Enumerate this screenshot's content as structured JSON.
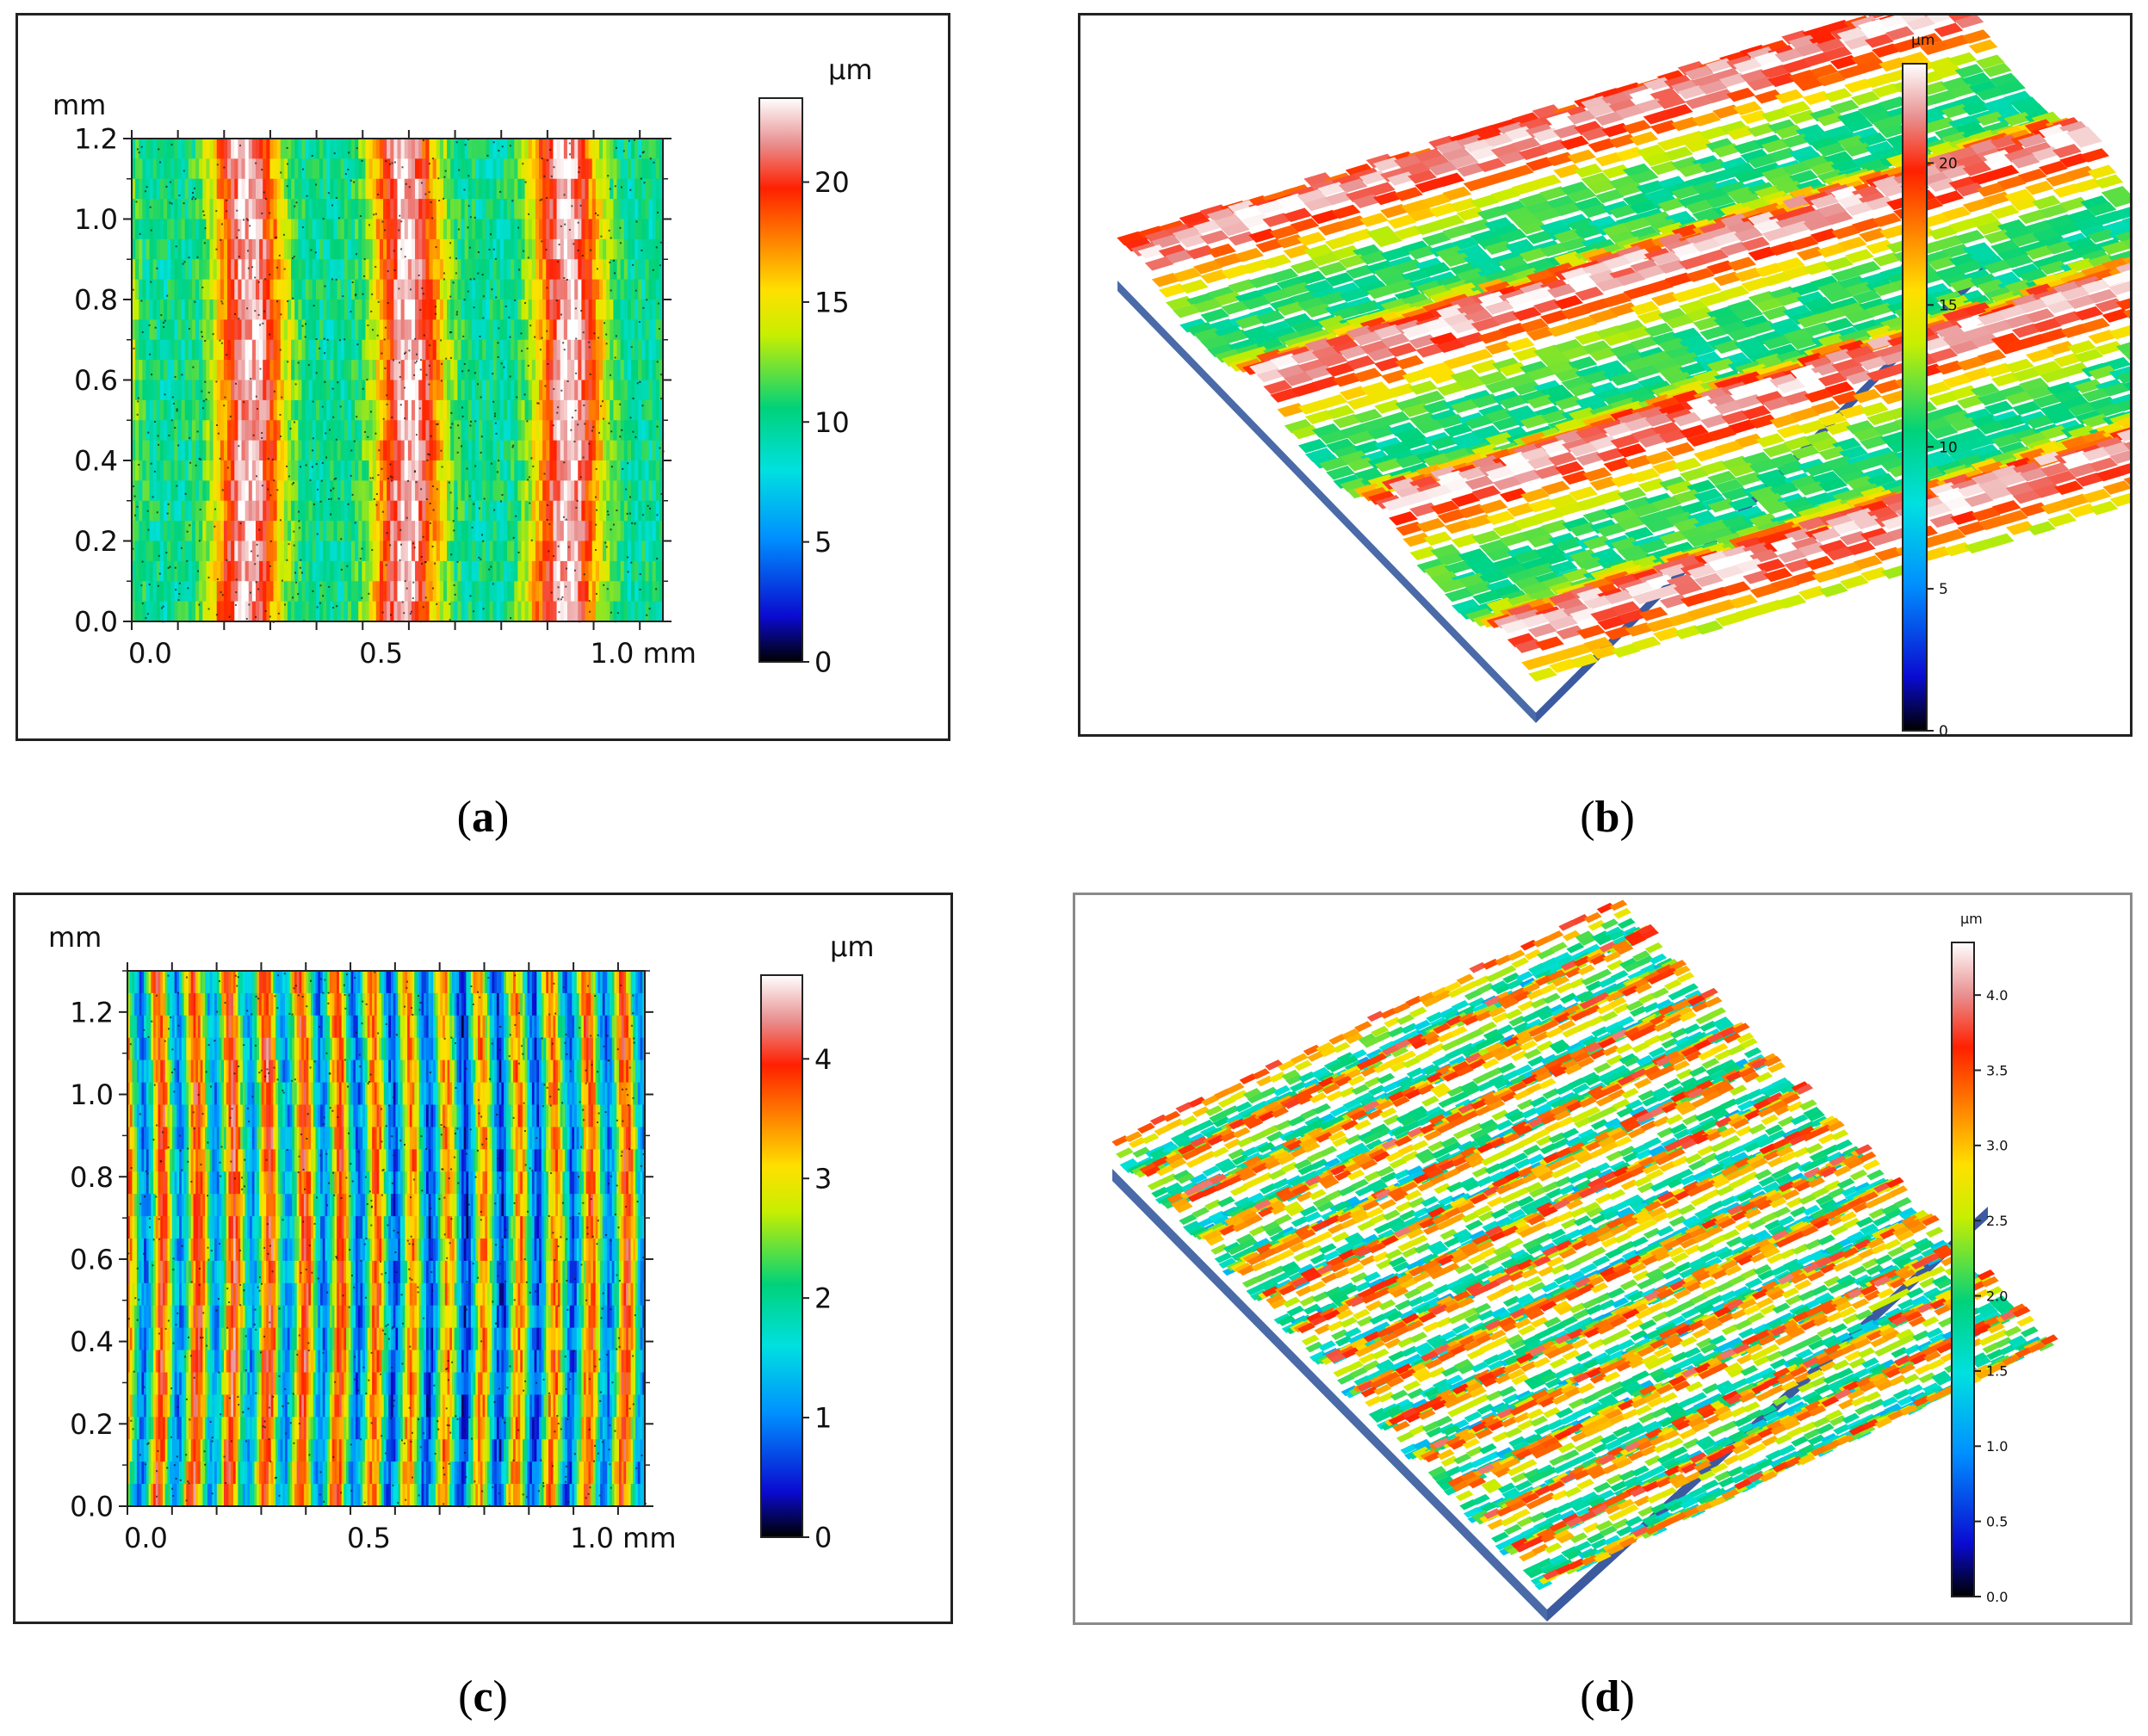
{
  "captions": {
    "a": "a",
    "b": "b",
    "c": "c",
    "d": "d"
  },
  "chart_data": [
    {
      "id": "a",
      "type": "heatmap",
      "x_unit_label": "mm",
      "y_unit_label": "mm",
      "xticks": [
        "0.0",
        "0.5",
        "1.0 mm"
      ],
      "yticks": [
        "0.0",
        "0.2",
        "0.4",
        "0.6",
        "0.8",
        "1.0",
        "1.2"
      ],
      "xlim": [
        0,
        1.15
      ],
      "ylim": [
        0,
        1.2
      ],
      "colorbar_label": "µm",
      "colorbar_ticks": [
        "0",
        "5",
        "10",
        "15",
        "20"
      ],
      "zlim": [
        0,
        23.5
      ],
      "colors": [
        "#000000",
        "#1010e0",
        "#00c8ff",
        "#00e080",
        "#d0f000",
        "#ffd000",
        "#ff2800",
        "#ffffff"
      ]
    },
    {
      "id": "b",
      "type": "surface",
      "colorbar_label": "µm",
      "colorbar_ticks": [
        "0",
        "5",
        "10",
        "15",
        "20"
      ],
      "zlim": [
        0,
        23.5
      ],
      "ridges": 4
    },
    {
      "id": "c",
      "type": "heatmap",
      "x_unit_label": "mm",
      "y_unit_label": "mm",
      "xticks": [
        "0.0",
        "0.5",
        "1.0 mm"
      ],
      "yticks": [
        "0.0",
        "0.2",
        "0.4",
        "0.6",
        "0.8",
        "1.0",
        "1.2"
      ],
      "xlim": [
        0,
        1.16
      ],
      "ylim": [
        0,
        1.3
      ],
      "colorbar_label": "µm",
      "colorbar_ticks": [
        "0",
        "1",
        "2",
        "3",
        "4"
      ],
      "zlim": [
        0,
        4.2
      ]
    },
    {
      "id": "d",
      "type": "surface",
      "colorbar_label": "µm",
      "colorbar_ticks": [
        "0.0",
        "0.5",
        "1.0",
        "1.5",
        "2.0",
        "2.5",
        "3.0",
        "3.5",
        "4.0"
      ],
      "zlim": [
        0,
        4.2
      ],
      "ridges": 14
    }
  ]
}
